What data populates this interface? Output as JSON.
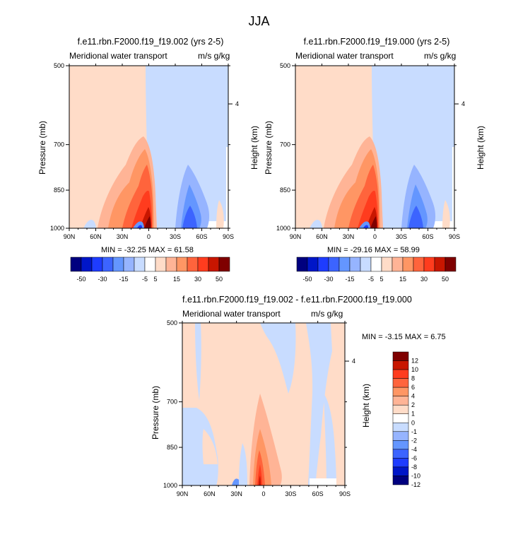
{
  "title": "JJA",
  "panels": [
    {
      "id": "a",
      "title": "f.e11.rbn.F2000.f19_f19.002 (yrs 2-5)",
      "left_label": "Meridional water transport",
      "right_label": "m/s g/kg",
      "ylabel": "Pressure (mb)",
      "ylabel_right": "Height (km)",
      "yticks": [
        "500",
        "700",
        "850",
        "1000"
      ],
      "yticks_right": [
        "4"
      ],
      "xticks": [
        "90N",
        "60N",
        "30N",
        "0",
        "30S",
        "60S",
        "90S"
      ],
      "stats": "MIN = -32.25  MAX =  61.58"
    },
    {
      "id": "b",
      "title": "f.e11.rbn.F2000.f19_f19.000 (yrs 2-5)",
      "left_label": "Meridional water transport",
      "right_label": "m/s g/kg",
      "ylabel": "Pressure (mb)",
      "ylabel_right": "Height (km)",
      "yticks": [
        "500",
        "700",
        "850",
        "1000"
      ],
      "yticks_right": [
        "4"
      ],
      "xticks": [
        "90N",
        "60N",
        "30N",
        "0",
        "30S",
        "60S",
        "90S"
      ],
      "stats": "MIN = -29.16  MAX =  58.99"
    },
    {
      "id": "c",
      "title": "f.e11.rbn.F2000.f19_f19.002 - f.e11.rbn.F2000.f19_f19.000",
      "left_label": "Meridional water transport",
      "right_label": "m/s g/kg",
      "ylabel": "Pressure (mb)",
      "ylabel_right": "Height (km)",
      "yticks": [
        "500",
        "700",
        "850",
        "1000"
      ],
      "yticks_right": [
        "4"
      ],
      "xticks": [
        "90N",
        "60N",
        "30N",
        "0",
        "30S",
        "60S",
        "90S"
      ],
      "stats": "MIN =  -3.15  MAX =   6.75"
    }
  ],
  "colorbar_top": {
    "labels": [
      "-50",
      "-30",
      "-15",
      "-5",
      "5",
      "15",
      "30",
      "50"
    ]
  },
  "colorbar_diff": {
    "labels": [
      "12",
      "10",
      "8",
      "6",
      "4",
      "2",
      "1",
      "0",
      "-1",
      "-2",
      "-4",
      "-6",
      "-8",
      "-10",
      "-12"
    ]
  },
  "palette": [
    "#00007f",
    "#0016c8",
    "#1e3cff",
    "#3c64ff",
    "#6496ff",
    "#96b4ff",
    "#c8dcff",
    "#ffffff",
    "#ffdcc8",
    "#ffb496",
    "#ff9664",
    "#ff643c",
    "#ff3c1e",
    "#c81600",
    "#7f0000"
  ],
  "chart_data": [
    {
      "type": "heatmap",
      "title": "f.e11.rbn.F2000.f19_f19.002 (yrs 2-5)",
      "xlabel": "",
      "ylabel": "Pressure (mb)",
      "x_categories": [
        "90N",
        "60N",
        "30N",
        "0",
        "30S",
        "60S",
        "90S"
      ],
      "ylim": [
        1000,
        500
      ],
      "y_scale": "log-pressure",
      "min": -32.25,
      "max": 61.58,
      "features": [
        {
          "lat": 2,
          "p_top": 700,
          "p_bottom": 1000,
          "peak": 61.58,
          "sign": "positive"
        },
        {
          "lat": -40,
          "p_top": 780,
          "p_bottom": 1000,
          "peak": -15,
          "sign": "negative"
        },
        {
          "lat": -22,
          "p_top": 960,
          "p_bottom": 1000,
          "peak": -32.25,
          "sign": "negative"
        }
      ]
    },
    {
      "type": "heatmap",
      "title": "f.e11.rbn.F2000.f19_f19.000 (yrs 2-5)",
      "xlabel": "",
      "ylabel": "Pressure (mb)",
      "x_categories": [
        "90N",
        "60N",
        "30N",
        "0",
        "30S",
        "60S",
        "90S"
      ],
      "ylim": [
        1000,
        500
      ],
      "y_scale": "log-pressure",
      "min": -29.16,
      "max": 58.99,
      "features": [
        {
          "lat": 2,
          "p_top": 700,
          "p_bottom": 1000,
          "peak": 58.99,
          "sign": "positive"
        },
        {
          "lat": -40,
          "p_top": 780,
          "p_bottom": 1000,
          "peak": -15,
          "sign": "negative"
        },
        {
          "lat": -22,
          "p_top": 960,
          "p_bottom": 1000,
          "peak": -29.16,
          "sign": "negative"
        }
      ]
    },
    {
      "type": "heatmap",
      "title": "f.e11.rbn.F2000.f19_f19.002 - f.e11.rbn.F2000.f19_f19.000",
      "xlabel": "",
      "ylabel": "Pressure (mb)",
      "x_categories": [
        "90N",
        "60N",
        "30N",
        "0",
        "30S",
        "60S",
        "90S"
      ],
      "ylim": [
        1000,
        500
      ],
      "y_scale": "log-pressure",
      "min": -3.15,
      "max": 6.75,
      "features": [
        {
          "lat": 8,
          "p_top": 720,
          "p_bottom": 1000,
          "peak": 6.75,
          "sign": "positive"
        },
        {
          "lat": 45,
          "p_top": 500,
          "p_bottom": 1000,
          "peak": -1,
          "sign": "negative"
        },
        {
          "lat": -30,
          "p_top": 500,
          "p_bottom": 1000,
          "peak": -1,
          "sign": "negative"
        }
      ]
    }
  ]
}
